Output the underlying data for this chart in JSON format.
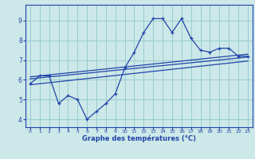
{
  "xlabel": "Graphe des températures (°C)",
  "bg_color": "#cce8e8",
  "grid_color": "#99cccc",
  "line_color": "#2244aa",
  "x_ticks": [
    0,
    1,
    2,
    3,
    4,
    5,
    6,
    7,
    8,
    9,
    10,
    11,
    12,
    13,
    14,
    15,
    16,
    17,
    18,
    19,
    20,
    21,
    22,
    23
  ],
  "y_ticks": [
    4,
    5,
    6,
    7,
    8,
    9
  ],
  "ylim": [
    3.6,
    9.8
  ],
  "xlim": [
    -0.5,
    23.5
  ],
  "curve1_x": [
    0,
    1,
    2,
    3,
    4,
    5,
    6,
    7,
    8,
    9,
    10,
    11,
    12,
    13,
    14,
    15,
    16,
    17,
    18,
    19,
    20,
    21,
    22,
    23
  ],
  "curve1_y": [
    5.8,
    6.2,
    6.2,
    4.8,
    5.2,
    5.0,
    4.0,
    4.4,
    4.8,
    5.3,
    6.6,
    7.4,
    8.4,
    9.1,
    9.1,
    8.4,
    9.1,
    8.1,
    7.5,
    7.4,
    7.6,
    7.6,
    7.2,
    7.2
  ],
  "line1_x": [
    0,
    23
  ],
  "line1_y": [
    6.15,
    7.3
  ],
  "line2_x": [
    0,
    23
  ],
  "line2_y": [
    6.05,
    7.15
  ],
  "line3_x": [
    0,
    23
  ],
  "line3_y": [
    5.75,
    6.95
  ]
}
